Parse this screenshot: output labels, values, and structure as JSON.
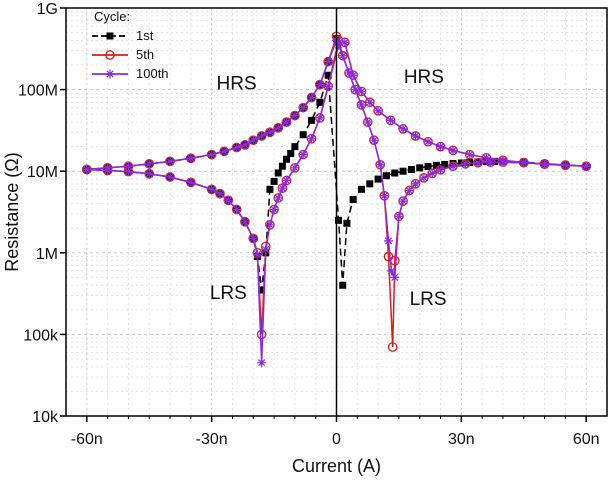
{
  "chart_data": {
    "type": "scatter",
    "title": "",
    "xlabel": "Current (A)",
    "ylabel": "Resistance (Ω)",
    "xlim": [
      -65,
      65
    ],
    "ylim": [
      10000,
      1000000000
    ],
    "yscale": "log",
    "x_unit_note": "nA",
    "grid": true,
    "x_ticks": [
      {
        "value": -60,
        "label": "-60n"
      },
      {
        "value": -30,
        "label": "-30n"
      },
      {
        "value": 0,
        "label": "0"
      },
      {
        "value": 30,
        "label": "30n"
      },
      {
        "value": 60,
        "label": "60n"
      }
    ],
    "y_ticks": [
      {
        "value": 10000,
        "label": "10k"
      },
      {
        "value": 100000,
        "label": "100k"
      },
      {
        "value": 1000000,
        "label": "1M"
      },
      {
        "value": 10000000,
        "label": "10M"
      },
      {
        "value": 100000000,
        "label": "100M"
      },
      {
        "value": 1000000000,
        "label": "1G"
      }
    ],
    "legend": {
      "title": "Cycle:",
      "location": "top-left",
      "entries": [
        "1st",
        "5th",
        "100th"
      ]
    },
    "annotations": [
      {
        "text": "HRS",
        "x": -24,
        "y": 100000000
      },
      {
        "text": "HRS",
        "x": 21,
        "y": 120000000
      },
      {
        "text": "LRS",
        "x": -26,
        "y": 270000
      },
      {
        "text": "LRS",
        "x": 22,
        "y": 230000
      }
    ],
    "series": [
      {
        "name": "1st",
        "color": "#000000",
        "marker": "square",
        "line": "dash",
        "points": [
          [
            -60,
            10500000
          ],
          [
            -55,
            11000000
          ],
          [
            -50,
            11500000
          ],
          [
            -45,
            12300000
          ],
          [
            -40,
            13200000
          ],
          [
            -35,
            14400000
          ],
          [
            -30,
            16000000
          ],
          [
            -27,
            17500000
          ],
          [
            -24,
            19500000
          ],
          [
            -22,
            21000000
          ],
          [
            -20,
            24000000
          ],
          [
            -18,
            27000000
          ],
          [
            -16,
            30000000
          ],
          [
            -14,
            34000000
          ],
          [
            -12,
            40000000
          ],
          [
            -10,
            48000000
          ],
          [
            -8,
            60000000
          ],
          [
            -6,
            80000000
          ],
          [
            -4,
            115000000
          ],
          [
            -2,
            220000000
          ],
          [
            0,
            420000000
          ],
          [
            -60,
            10500000
          ],
          [
            -55,
            10200000
          ],
          [
            -50,
            9900000
          ],
          [
            -45,
            9300000
          ],
          [
            -40,
            8500000
          ],
          [
            -35,
            7300000
          ],
          [
            -30,
            6000000
          ],
          [
            -28,
            5300000
          ],
          [
            -26,
            4400000
          ],
          [
            -24,
            3400000
          ],
          [
            -22,
            2400000
          ],
          [
            -20,
            1500000
          ],
          [
            -19,
            900000
          ],
          [
            -18,
            350000
          ],
          [
            -17,
            1000000
          ],
          [
            -16,
            6000000
          ],
          [
            -15,
            7500000
          ],
          [
            -14,
            9500000
          ],
          [
            -13,
            11500000
          ],
          [
            -12,
            14000000
          ],
          [
            -11,
            16500000
          ],
          [
            -10,
            20000000
          ],
          [
            -8,
            28000000
          ],
          [
            -6,
            42000000
          ],
          [
            -4,
            70000000
          ],
          [
            -2,
            150000000
          ],
          [
            0.5,
            2500000
          ],
          [
            1.5,
            400000
          ],
          [
            2.5,
            2300000
          ],
          [
            4,
            4500000
          ],
          [
            6,
            6000000
          ],
          [
            8,
            7000000
          ],
          [
            10,
            8000000
          ],
          [
            12,
            8800000
          ],
          [
            14,
            9500000
          ],
          [
            16,
            10000000
          ],
          [
            18,
            10500000
          ],
          [
            20,
            11000000
          ],
          [
            22,
            11400000
          ],
          [
            24,
            11800000
          ],
          [
            26,
            12100000
          ],
          [
            28,
            12400000
          ],
          [
            30,
            12600000
          ],
          [
            32,
            12800000
          ],
          [
            34,
            13000000
          ],
          [
            36,
            13100000
          ],
          [
            38,
            13200000
          ],
          [
            40,
            13200000
          ],
          [
            45,
            12900000
          ],
          [
            50,
            12400000
          ],
          [
            55,
            11900000
          ],
          [
            60,
            11500000
          ]
        ]
      },
      {
        "name": "5th",
        "color": "#d42020",
        "marker": "circle-open",
        "line": "solid",
        "points": [
          [
            -60,
            10500000
          ],
          [
            -55,
            11000000
          ],
          [
            -50,
            11500000
          ],
          [
            -45,
            12300000
          ],
          [
            -40,
            13200000
          ],
          [
            -35,
            14400000
          ],
          [
            -30,
            16000000
          ],
          [
            -27,
            17500000
          ],
          [
            -24,
            19500000
          ],
          [
            -22,
            21000000
          ],
          [
            -20,
            24000000
          ],
          [
            -18,
            27000000
          ],
          [
            -16,
            30000000
          ],
          [
            -14,
            34000000
          ],
          [
            -12,
            40000000
          ],
          [
            -10,
            48000000
          ],
          [
            -8,
            60000000
          ],
          [
            -6,
            80000000
          ],
          [
            -4,
            115000000
          ],
          [
            -2,
            220000000
          ],
          [
            0,
            450000000
          ],
          [
            -60,
            10500000
          ],
          [
            -55,
            10200000
          ],
          [
            -50,
            9900000
          ],
          [
            -45,
            9300000
          ],
          [
            -40,
            8500000
          ],
          [
            -35,
            7300000
          ],
          [
            -30,
            6000000
          ],
          [
            -28,
            5300000
          ],
          [
            -26,
            4400000
          ],
          [
            -24,
            3400000
          ],
          [
            -22,
            2400000
          ],
          [
            -20,
            1500000
          ],
          [
            -19,
            1000000
          ],
          [
            -18,
            100000
          ],
          [
            -17,
            1200000
          ],
          [
            -16,
            2200000
          ],
          [
            -15,
            3400000
          ],
          [
            -14,
            4700000
          ],
          [
            -13,
            6200000
          ],
          [
            -12,
            7700000
          ],
          [
            -10,
            11000000
          ],
          [
            -8,
            16000000
          ],
          [
            -6,
            25000000
          ],
          [
            -4,
            45000000
          ],
          [
            -2,
            110000000
          ],
          [
            0.5,
            400000000
          ],
          [
            1.5,
            260000000
          ],
          [
            3,
            160000000
          ],
          [
            4.5,
            100000000
          ],
          [
            6,
            65000000
          ],
          [
            7.5,
            40000000
          ],
          [
            9,
            24000000
          ],
          [
            10.5,
            12000000
          ],
          [
            11.5,
            5000000
          ],
          [
            12.5,
            900000
          ],
          [
            13.5,
            70000
          ],
          [
            14,
            800000
          ],
          [
            15,
            2800000
          ],
          [
            16,
            4300000
          ],
          [
            17.5,
            5800000
          ],
          [
            19,
            7000000
          ],
          [
            21,
            8300000
          ],
          [
            23,
            9400000
          ],
          [
            25,
            10400000
          ],
          [
            28,
            11500000
          ],
          [
            31,
            12300000
          ],
          [
            34,
            12700000
          ],
          [
            37,
            12900000
          ],
          [
            40,
            12900000
          ],
          [
            45,
            12700000
          ],
          [
            50,
            12300000
          ],
          [
            55,
            11900000
          ],
          [
            60,
            11500000
          ],
          [
            2,
            380000000
          ],
          [
            4,
            150000000
          ],
          [
            6,
            95000000
          ],
          [
            8,
            70000000
          ],
          [
            10,
            55000000
          ],
          [
            13,
            42000000
          ],
          [
            16,
            33000000
          ],
          [
            19,
            27000000
          ],
          [
            22,
            23000000
          ],
          [
            25,
            20000000
          ],
          [
            28,
            18000000
          ],
          [
            32,
            16000000
          ],
          [
            36,
            14600000
          ],
          [
            40,
            13600000
          ],
          [
            45,
            12800000
          ],
          [
            50,
            12200000
          ],
          [
            55,
            11800000
          ],
          [
            60,
            11500000
          ]
        ]
      },
      {
        "name": "100th",
        "color": "#8a2be2",
        "marker": "asterisk",
        "line": "solid",
        "points": [
          [
            -60,
            10500000
          ],
          [
            -55,
            11000000
          ],
          [
            -50,
            11500000
          ],
          [
            -45,
            12300000
          ],
          [
            -40,
            13200000
          ],
          [
            -35,
            14400000
          ],
          [
            -30,
            16000000
          ],
          [
            -27,
            17500000
          ],
          [
            -24,
            19500000
          ],
          [
            -22,
            21000000
          ],
          [
            -20,
            24000000
          ],
          [
            -18,
            27000000
          ],
          [
            -16,
            30000000
          ],
          [
            -14,
            34000000
          ],
          [
            -12,
            40000000
          ],
          [
            -10,
            48000000
          ],
          [
            -8,
            60000000
          ],
          [
            -6,
            80000000
          ],
          [
            -4,
            115000000
          ],
          [
            -2,
            220000000
          ],
          [
            0,
            400000000
          ],
          [
            -60,
            10500000
          ],
          [
            -55,
            10200000
          ],
          [
            -50,
            9900000
          ],
          [
            -45,
            9300000
          ],
          [
            -40,
            8500000
          ],
          [
            -35,
            7300000
          ],
          [
            -30,
            6000000
          ],
          [
            -28,
            5300000
          ],
          [
            -26,
            4400000
          ],
          [
            -24,
            3400000
          ],
          [
            -22,
            2400000
          ],
          [
            -20,
            1500000
          ],
          [
            -19,
            950000
          ],
          [
            -18,
            45000
          ],
          [
            -17,
            1100000
          ],
          [
            -16,
            2200000
          ],
          [
            -15,
            3400000
          ],
          [
            -14,
            4700000
          ],
          [
            -13,
            6200000
          ],
          [
            -12,
            7700000
          ],
          [
            -10,
            11000000
          ],
          [
            -8,
            16000000
          ],
          [
            -6,
            25000000
          ],
          [
            -4,
            45000000
          ],
          [
            -2,
            110000000
          ],
          [
            0.5,
            350000000
          ],
          [
            1.5,
            260000000
          ],
          [
            3,
            160000000
          ],
          [
            4.5,
            100000000
          ],
          [
            6,
            65000000
          ],
          [
            7.5,
            40000000
          ],
          [
            9,
            24000000
          ],
          [
            10.5,
            12000000
          ],
          [
            11.5,
            5000000
          ],
          [
            12.5,
            1400000
          ],
          [
            13.2,
            600000
          ],
          [
            14,
            500000
          ],
          [
            15,
            2800000
          ],
          [
            16,
            4300000
          ],
          [
            17.5,
            5800000
          ],
          [
            19,
            7000000
          ],
          [
            21,
            8300000
          ],
          [
            23,
            9400000
          ],
          [
            25,
            10400000
          ],
          [
            28,
            11500000
          ],
          [
            31,
            12300000
          ],
          [
            34,
            12700000
          ],
          [
            37,
            12900000
          ],
          [
            40,
            12900000
          ],
          [
            45,
            12700000
          ],
          [
            50,
            12300000
          ],
          [
            55,
            11900000
          ],
          [
            60,
            11500000
          ],
          [
            2,
            380000000
          ],
          [
            4,
            150000000
          ],
          [
            6,
            95000000
          ],
          [
            8,
            70000000
          ],
          [
            10,
            55000000
          ],
          [
            13,
            42000000
          ],
          [
            16,
            33000000
          ],
          [
            19,
            27000000
          ],
          [
            22,
            23000000
          ],
          [
            25,
            20000000
          ],
          [
            28,
            18000000
          ],
          [
            32,
            16000000
          ],
          [
            36,
            14600000
          ],
          [
            40,
            13600000
          ],
          [
            45,
            12800000
          ],
          [
            50,
            12200000
          ],
          [
            55,
            11800000
          ],
          [
            60,
            11500000
          ]
        ]
      }
    ]
  }
}
